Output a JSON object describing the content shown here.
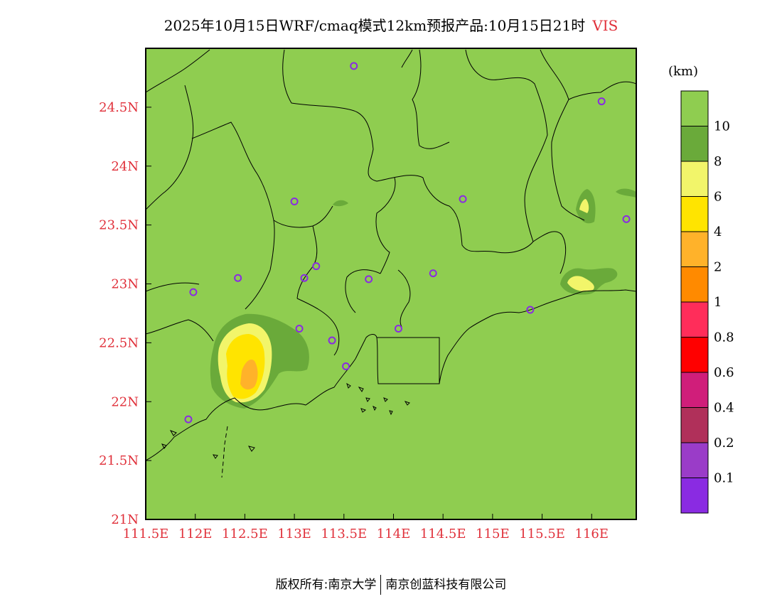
{
  "title": {
    "main": "2025年10月15日WRF/cmaq模式12km预报产品:10月15日21时",
    "variable": "VIS"
  },
  "axes": {
    "x_ticks": [
      "111.5E",
      "112E",
      "112.5E",
      "113E",
      "113.5E",
      "114E",
      "114.5E",
      "115E",
      "115.5E",
      "116E"
    ],
    "y_ticks": [
      "21N",
      "21.5N",
      "22N",
      "22.5N",
      "23N",
      "23.5N",
      "24N",
      "24.5N"
    ],
    "x_values": [
      111.5,
      112,
      112.5,
      113,
      113.5,
      114,
      114.5,
      115,
      115.5,
      116
    ],
    "y_values": [
      21,
      21.5,
      22,
      22.5,
      23,
      23.5,
      24,
      24.5
    ],
    "lon_range": [
      111.5,
      116.45
    ],
    "lat_range": [
      21,
      25
    ]
  },
  "colorbar": {
    "unit": "(km)",
    "levels": [
      {
        "label": "",
        "color": "#8fcd50"
      },
      {
        "label": "10",
        "color": "#6aaa3a"
      },
      {
        "label": "8",
        "color": "#f2f56a"
      },
      {
        "label": "6",
        "color": "#ffe400"
      },
      {
        "label": "4",
        "color": "#ffb22a"
      },
      {
        "label": "2",
        "color": "#ff8a00"
      },
      {
        "label": "1",
        "color": "#ff2d5a"
      },
      {
        "label": "0.8",
        "color": "#ff0000"
      },
      {
        "label": "0.6",
        "color": "#d01e7a"
      },
      {
        "label": "0.4",
        "color": "#b0305a"
      },
      {
        "label": "0.2",
        "color": "#9a3cc8"
      },
      {
        "label": "0.1",
        "color": "#8a2be2"
      }
    ]
  },
  "stations": [
    [
      113.6,
      24.85
    ],
    [
      116.1,
      24.55
    ],
    [
      113.0,
      23.7
    ],
    [
      114.7,
      23.72
    ],
    [
      116.35,
      23.55
    ],
    [
      113.22,
      23.15
    ],
    [
      113.1,
      23.05
    ],
    [
      112.43,
      23.05
    ],
    [
      113.75,
      23.04
    ],
    [
      114.4,
      23.09
    ],
    [
      111.98,
      22.93
    ],
    [
      115.38,
      22.78
    ],
    [
      113.05,
      22.62
    ],
    [
      114.05,
      22.62
    ],
    [
      113.38,
      22.52
    ],
    [
      113.52,
      22.3
    ],
    [
      111.93,
      21.85
    ]
  ],
  "footer": {
    "left": "版权所有:南京大学",
    "right": "南京创蓝科技有限公司"
  }
}
